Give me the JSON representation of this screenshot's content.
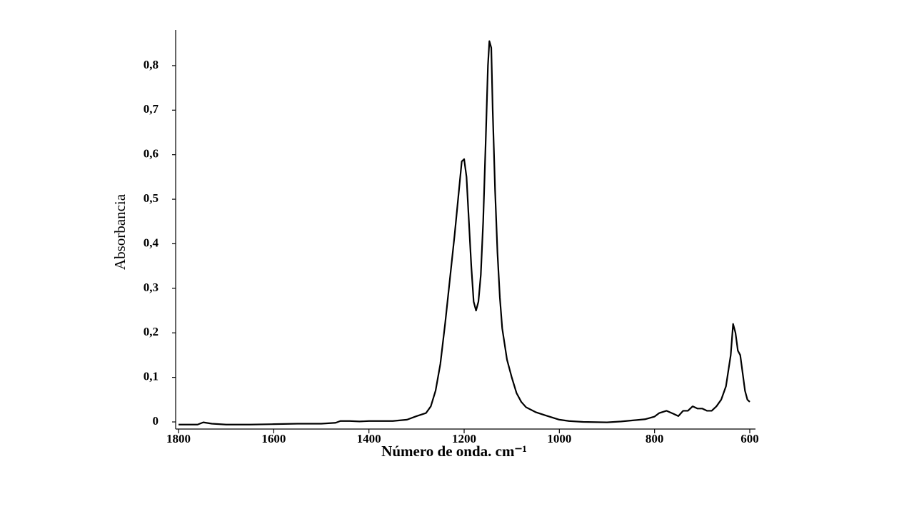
{
  "chart_data": {
    "type": "line",
    "xlabel": "Número de onda. cm⁻¹",
    "ylabel": "Absorbancia",
    "x": [
      1800,
      1760,
      1748,
      1730,
      1700,
      1650,
      1600,
      1550,
      1500,
      1470,
      1460,
      1440,
      1420,
      1400,
      1350,
      1320,
      1300,
      1280,
      1270,
      1260,
      1250,
      1240,
      1230,
      1220,
      1210,
      1205,
      1200,
      1195,
      1190,
      1185,
      1180,
      1175,
      1170,
      1165,
      1160,
      1155,
      1150,
      1147,
      1143,
      1140,
      1135,
      1130,
      1125,
      1120,
      1110,
      1100,
      1090,
      1080,
      1070,
      1050,
      1030,
      1000,
      980,
      950,
      900,
      870,
      850,
      820,
      800,
      790,
      775,
      760,
      750,
      740,
      730,
      720,
      710,
      700,
      690,
      680,
      670,
      660,
      650,
      640,
      635,
      630,
      625,
      620,
      615,
      610,
      605,
      600
    ],
    "series": [
      {
        "name": "Absorbancia",
        "color": "#000000",
        "values": [
          -0.006,
          -0.006,
          -0.001,
          -0.004,
          -0.006,
          -0.006,
          -0.005,
          -0.004,
          -0.004,
          -0.002,
          0.002,
          0.002,
          0.001,
          0.002,
          0.002,
          0.005,
          0.013,
          0.02,
          0.035,
          0.07,
          0.13,
          0.22,
          0.32,
          0.42,
          0.53,
          0.585,
          0.59,
          0.55,
          0.45,
          0.35,
          0.27,
          0.25,
          0.27,
          0.33,
          0.45,
          0.62,
          0.8,
          0.855,
          0.84,
          0.7,
          0.52,
          0.38,
          0.28,
          0.21,
          0.14,
          0.1,
          0.065,
          0.045,
          0.033,
          0.022,
          0.015,
          0.005,
          0.002,
          0.0,
          -0.001,
          0.001,
          0.003,
          0.006,
          0.012,
          0.02,
          0.025,
          0.018,
          0.013,
          0.025,
          0.025,
          0.035,
          0.03,
          0.03,
          0.025,
          0.025,
          0.035,
          0.05,
          0.08,
          0.15,
          0.22,
          0.2,
          0.16,
          0.15,
          0.11,
          0.07,
          0.05,
          0.045
        ]
      }
    ],
    "xlim": [
      1806,
      588
    ],
    "ylim": [
      -0.016,
      0.88
    ],
    "xticks": [
      1800,
      1600,
      1400,
      1200,
      1000,
      800,
      600
    ],
    "yticks": [
      0,
      {
        "value": 0.1,
        "label": "0,1"
      },
      {
        "value": 0.2,
        "label": "0,2"
      },
      {
        "value": 0.3,
        "label": "0,3"
      },
      {
        "value": 0.4,
        "label": "0,4"
      },
      {
        "value": 0.5,
        "label": "0,5"
      },
      {
        "value": 0.6,
        "label": "0,6"
      },
      {
        "value": 0.7,
        "label": "0,7"
      },
      {
        "value": 0.8,
        "label": "0,8"
      }
    ],
    "grid": false
  }
}
